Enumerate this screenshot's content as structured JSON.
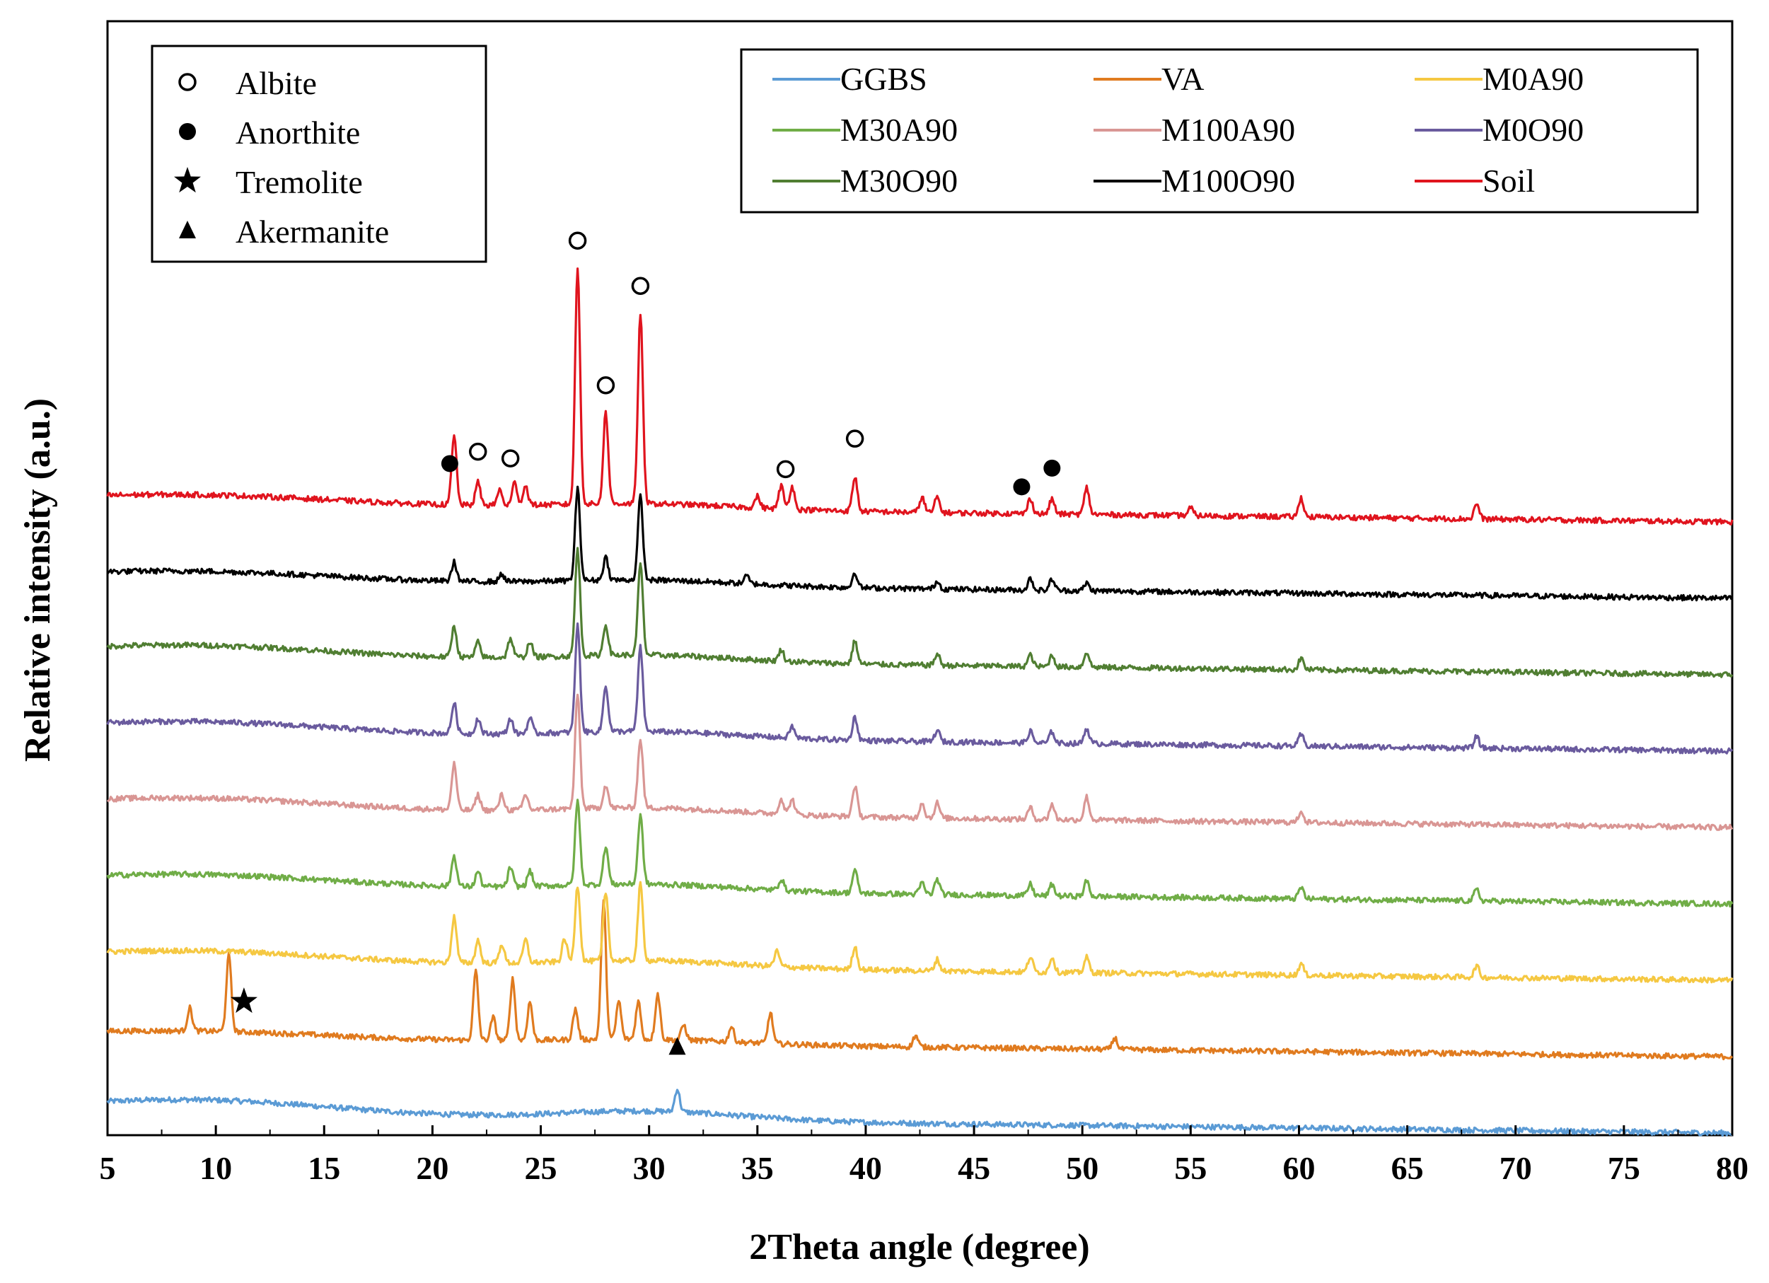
{
  "chart_data": {
    "type": "line",
    "xlabel": "2Theta angle (degree)",
    "ylabel": "Relative intensity (a.u.)",
    "xlim": [
      5,
      80
    ],
    "xticks": [
      "5",
      "10",
      "15",
      "20",
      "25",
      "30",
      "35",
      "40",
      "45",
      "50",
      "55",
      "60",
      "65",
      "70",
      "75",
      "80"
    ],
    "grid": false,
    "series": [
      {
        "name": "GGBS",
        "color": "#5b9bd5",
        "baseline": 0.0,
        "halo": 0.2,
        "peaks": [
          [
            31.3,
            0.3
          ]
        ]
      },
      {
        "name": "VA",
        "color": "#e07b1f",
        "baseline": 1.0,
        "halo": 0.1,
        "peaks": [
          [
            8.8,
            0.3
          ],
          [
            10.6,
            1.0
          ],
          [
            22.0,
            0.9
          ],
          [
            22.8,
            0.3
          ],
          [
            23.7,
            0.8
          ],
          [
            24.5,
            0.5
          ],
          [
            26.6,
            0.4
          ],
          [
            27.9,
            1.8
          ],
          [
            28.6,
            0.5
          ],
          [
            29.5,
            0.5
          ],
          [
            30.4,
            0.6
          ],
          [
            31.6,
            0.2
          ],
          [
            33.8,
            0.2
          ],
          [
            35.6,
            0.4
          ],
          [
            42.3,
            0.15
          ],
          [
            51.5,
            0.15
          ]
        ]
      },
      {
        "name": "M0A90",
        "color": "#f5c842",
        "baseline": 2.0,
        "halo": 0.15,
        "peaks": [
          [
            21.0,
            0.6
          ],
          [
            22.1,
            0.3
          ],
          [
            23.2,
            0.25
          ],
          [
            24.3,
            0.3
          ],
          [
            26.1,
            0.3
          ],
          [
            26.7,
            1.0
          ],
          [
            28.0,
            0.9
          ],
          [
            29.6,
            1.0
          ],
          [
            35.9,
            0.2
          ],
          [
            39.5,
            0.3
          ],
          [
            43.3,
            0.15
          ],
          [
            47.6,
            0.2
          ],
          [
            48.6,
            0.2
          ],
          [
            50.2,
            0.2
          ],
          [
            60.1,
            0.15
          ],
          [
            68.2,
            0.15
          ]
        ]
      },
      {
        "name": "M30A90",
        "color": "#70ad47",
        "baseline": 3.0,
        "halo": 0.15,
        "peaks": [
          [
            21.0,
            0.4
          ],
          [
            22.1,
            0.2
          ],
          [
            23.6,
            0.25
          ],
          [
            24.5,
            0.2
          ],
          [
            26.7,
            1.1
          ],
          [
            28.0,
            0.5
          ],
          [
            29.6,
            0.9
          ],
          [
            36.1,
            0.15
          ],
          [
            39.5,
            0.3
          ],
          [
            42.6,
            0.15
          ],
          [
            43.3,
            0.2
          ],
          [
            47.6,
            0.15
          ],
          [
            48.6,
            0.15
          ],
          [
            50.2,
            0.2
          ],
          [
            60.1,
            0.15
          ],
          [
            68.2,
            0.15
          ]
        ]
      },
      {
        "name": "M100A90",
        "color": "#d99694",
        "baseline": 4.0,
        "halo": 0.15,
        "peaks": [
          [
            21.0,
            0.6
          ],
          [
            22.1,
            0.2
          ],
          [
            23.2,
            0.2
          ],
          [
            24.3,
            0.2
          ],
          [
            26.7,
            1.5
          ],
          [
            28.0,
            0.3
          ],
          [
            29.6,
            0.9
          ],
          [
            36.1,
            0.2
          ],
          [
            36.6,
            0.2
          ],
          [
            39.5,
            0.4
          ],
          [
            42.6,
            0.2
          ],
          [
            43.3,
            0.2
          ],
          [
            47.6,
            0.15
          ],
          [
            48.6,
            0.2
          ],
          [
            50.2,
            0.3
          ],
          [
            60.1,
            0.15
          ]
        ]
      },
      {
        "name": "M0O90",
        "color": "#6a5b9e",
        "baseline": 5.0,
        "halo": 0.15,
        "peaks": [
          [
            21.0,
            0.4
          ],
          [
            22.1,
            0.2
          ],
          [
            23.6,
            0.2
          ],
          [
            24.5,
            0.2
          ],
          [
            26.7,
            1.4
          ],
          [
            28.0,
            0.6
          ],
          [
            29.6,
            1.1
          ],
          [
            36.6,
            0.15
          ],
          [
            39.5,
            0.3
          ],
          [
            43.3,
            0.15
          ],
          [
            47.6,
            0.15
          ],
          [
            48.6,
            0.15
          ],
          [
            50.2,
            0.2
          ],
          [
            60.1,
            0.15
          ],
          [
            68.2,
            0.15
          ]
        ]
      },
      {
        "name": "M30O90",
        "color": "#507e32",
        "baseline": 6.0,
        "halo": 0.15,
        "peaks": [
          [
            21.0,
            0.4
          ],
          [
            22.1,
            0.2
          ],
          [
            23.6,
            0.25
          ],
          [
            24.5,
            0.2
          ],
          [
            26.7,
            1.4
          ],
          [
            28.0,
            0.4
          ],
          [
            29.6,
            1.2
          ],
          [
            36.1,
            0.15
          ],
          [
            39.5,
            0.3
          ],
          [
            43.3,
            0.15
          ],
          [
            47.6,
            0.15
          ],
          [
            48.6,
            0.15
          ],
          [
            50.2,
            0.2
          ],
          [
            60.1,
            0.15
          ]
        ]
      },
      {
        "name": "M100O90",
        "color": "#000000",
        "baseline": 7.0,
        "halo": 0.12,
        "peaks": [
          [
            21.0,
            0.25
          ],
          [
            23.2,
            0.1
          ],
          [
            26.7,
            1.2
          ],
          [
            28.0,
            0.3
          ],
          [
            29.6,
            1.1
          ],
          [
            34.5,
            0.1
          ],
          [
            39.5,
            0.2
          ],
          [
            43.3,
            0.1
          ],
          [
            47.6,
            0.15
          ],
          [
            48.6,
            0.15
          ],
          [
            50.2,
            0.1
          ]
        ]
      },
      {
        "name": "Soil",
        "color": "#e0141e",
        "baseline": 8.0,
        "halo": 0.12,
        "peaks": [
          [
            21.0,
            0.9
          ],
          [
            22.1,
            0.3
          ],
          [
            23.1,
            0.2
          ],
          [
            23.8,
            0.3
          ],
          [
            24.3,
            0.25
          ],
          [
            26.7,
            3.1
          ],
          [
            28.0,
            1.2
          ],
          [
            29.6,
            2.5
          ],
          [
            35.0,
            0.15
          ],
          [
            36.1,
            0.3
          ],
          [
            36.6,
            0.3
          ],
          [
            39.5,
            0.45
          ],
          [
            42.6,
            0.2
          ],
          [
            43.3,
            0.2
          ],
          [
            47.6,
            0.2
          ],
          [
            48.6,
            0.2
          ],
          [
            50.2,
            0.35
          ],
          [
            55.0,
            0.1
          ],
          [
            60.1,
            0.25
          ],
          [
            68.2,
            0.2
          ]
        ]
      }
    ],
    "markers": [
      {
        "symbol": "circle-open",
        "x": 26.7,
        "series": "Soil",
        "offset": 0.35
      },
      {
        "symbol": "circle-open",
        "x": 29.6,
        "series": "Soil",
        "offset": 0.35
      },
      {
        "symbol": "circle-open",
        "x": 28.0,
        "series": "Soil",
        "offset": 0.35
      },
      {
        "symbol": "circle-filled",
        "x": 20.8,
        "series": "Soil",
        "offset": 0.35
      },
      {
        "symbol": "circle-open",
        "x": 22.1,
        "series": "Soil",
        "offset": 0.4
      },
      {
        "symbol": "circle-open",
        "x": 23.6,
        "series": "Soil",
        "offset": 0.55
      },
      {
        "symbol": "circle-open",
        "x": 36.3,
        "series": "Soil",
        "offset": 0.45
      },
      {
        "symbol": "circle-open",
        "x": 39.5,
        "series": "Soil",
        "offset": 0.5
      },
      {
        "symbol": "circle-filled",
        "x": 47.2,
        "series": "Soil",
        "offset": 0.35
      },
      {
        "symbol": "circle-filled",
        "x": 48.6,
        "series": "Soil",
        "offset": 0.4
      },
      {
        "symbol": "star",
        "x": 11.3,
        "series": "VA",
        "offset": 0.4
      },
      {
        "symbol": "triangle",
        "x": 31.3,
        "series": "GGBS",
        "offset": 0.55
      }
    ],
    "phase_legend": [
      {
        "symbol": "circle-open",
        "label": "Albite"
      },
      {
        "symbol": "circle-filled",
        "label": "Anorthite"
      },
      {
        "symbol": "star",
        "label": "Tremolite"
      },
      {
        "symbol": "triangle",
        "label": "Akermanite"
      }
    ],
    "legend_placement": "top-right"
  }
}
